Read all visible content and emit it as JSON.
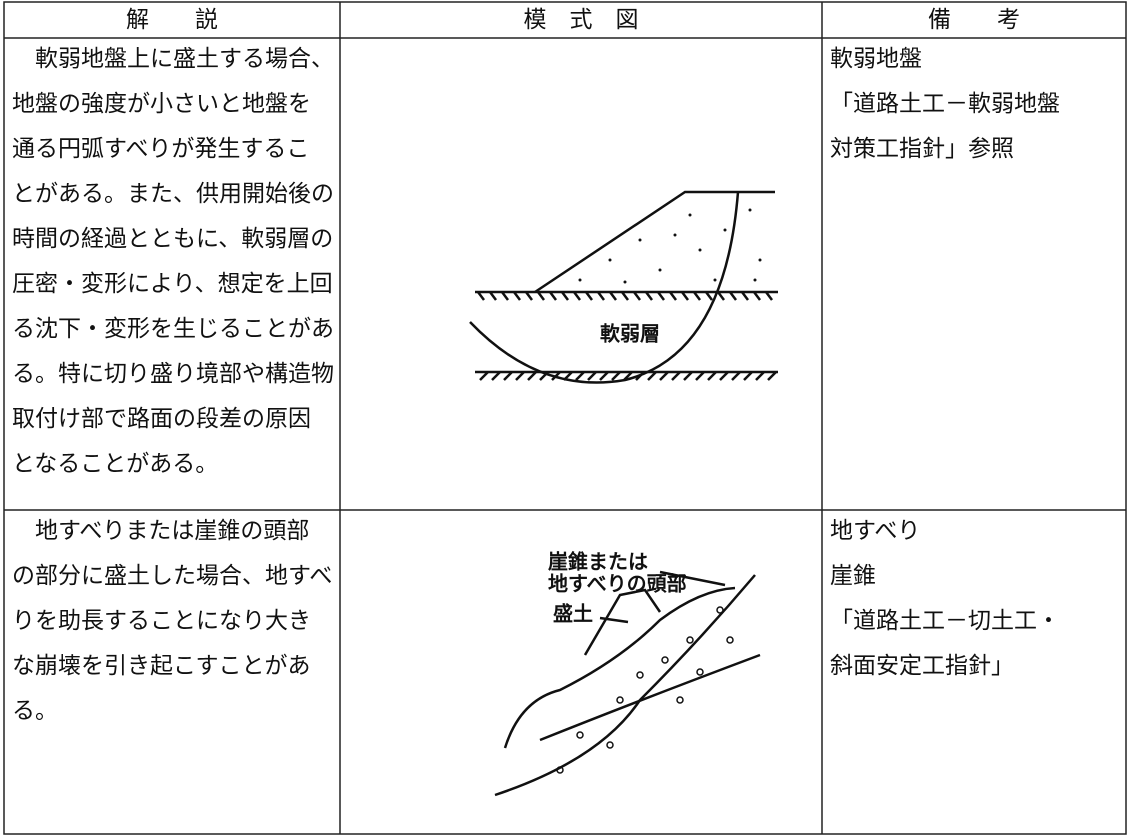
{
  "header": {
    "columns": [
      "解　　説",
      "模　式　図",
      "備　　考"
    ]
  },
  "rows": [
    {
      "explanation": [
        "　軟弱地盤上に盛土する場合、",
        "地盤の強度が小さいと地盤を",
        "通る円弧すべりが発生するこ",
        "とがある。また、供用開始後の",
        "時間の経過とともに、軟弱層の",
        "圧密・変形により、想定を上回",
        "る沈下・変形を生じることがあ",
        "る。特に切り盛り境部や構造物",
        "取付け部で路面の段差の原因",
        "となることがある。"
      ],
      "diagram_labels": [
        "軟弱層"
      ],
      "remarks": [
        "軟弱地盤",
        "「道路土工－軟弱地盤",
        "対策工指針」参照"
      ]
    },
    {
      "explanation": [
        "　地すべりまたは崖錐の頭部",
        "の部分に盛土した場合、地すべ",
        "りを助長することになり大き",
        "な崩壊を引き起こすことがあ",
        "る。"
      ],
      "diagram_labels": [
        "崖錐または",
        "地すべりの頭部",
        "盛土"
      ],
      "remarks": [
        "地すべり",
        "崖錐",
        "「道路土工－切土工・",
        "斜面安定工指針」"
      ]
    }
  ]
}
